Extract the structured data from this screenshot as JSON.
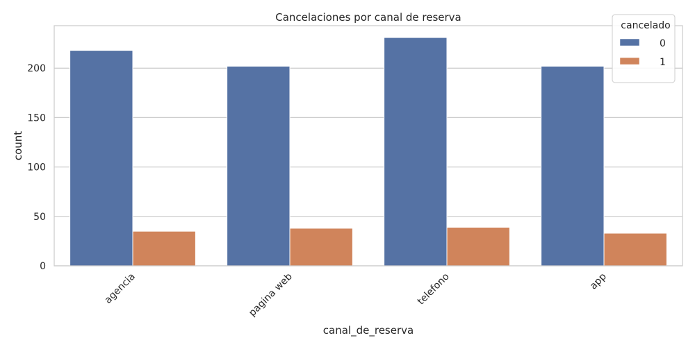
{
  "chart_data": {
    "type": "bar",
    "title": "Cancelaciones por canal de reserva",
    "xlabel": "canal_de_reserva",
    "ylabel": "count",
    "categories": [
      "agencia",
      "pagina web",
      "telefono",
      "app"
    ],
    "series": [
      {
        "name": "0",
        "color": "#5572a4",
        "values": [
          218,
          202,
          231,
          202
        ]
      },
      {
        "name": "1",
        "color": "#d0845b",
        "values": [
          35,
          38,
          39,
          33
        ]
      }
    ],
    "ylim": [
      0,
      243
    ],
    "yticks": [
      0,
      50,
      100,
      150,
      200
    ],
    "grid": "horizontal",
    "legend": {
      "title": "cancelado",
      "position": "top-right"
    }
  }
}
